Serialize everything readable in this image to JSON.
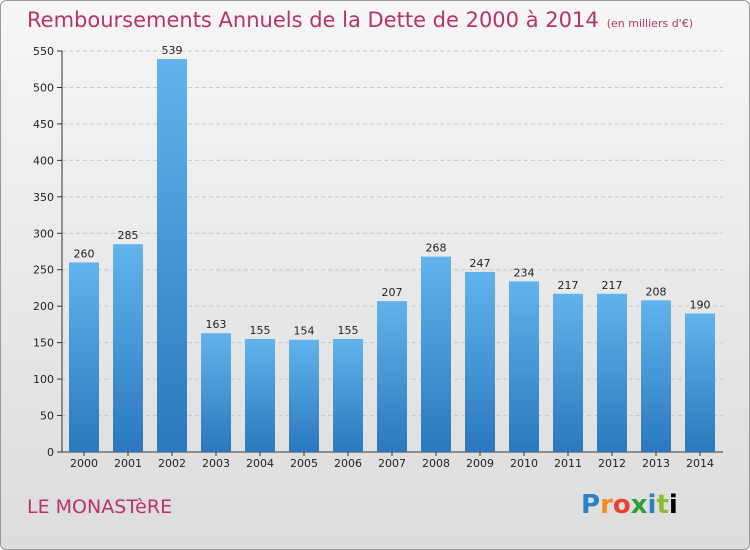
{
  "header": {
    "title": "Remboursements Annuels de la Dette de 2000 à 2014",
    "unit": "(en milliers d'€)"
  },
  "footer": {
    "town": "LE MONASTèRE",
    "logo_letters": [
      "P",
      "r",
      "o",
      "x",
      "i",
      "t",
      "i"
    ]
  },
  "colors": {
    "bar_top": "#62b3ec",
    "bar_bottom": "#2b78be",
    "title": "#b8326b"
  },
  "chart_data": {
    "type": "bar",
    "title": "Remboursements Annuels de la Dette de 2000 à 2014",
    "xlabel": "",
    "ylabel": "",
    "categories": [
      "2000",
      "2001",
      "2002",
      "2003",
      "2004",
      "2005",
      "2006",
      "2007",
      "2008",
      "2009",
      "2010",
      "2011",
      "2012",
      "2013",
      "2014"
    ],
    "values": [
      260,
      285,
      539,
      163,
      155,
      154,
      155,
      207,
      268,
      247,
      234,
      217,
      217,
      208,
      190
    ],
    "ylim": [
      0,
      550
    ],
    "yticks": [
      0,
      50,
      100,
      150,
      200,
      250,
      300,
      350,
      400,
      450,
      500,
      550
    ],
    "grid": true
  }
}
